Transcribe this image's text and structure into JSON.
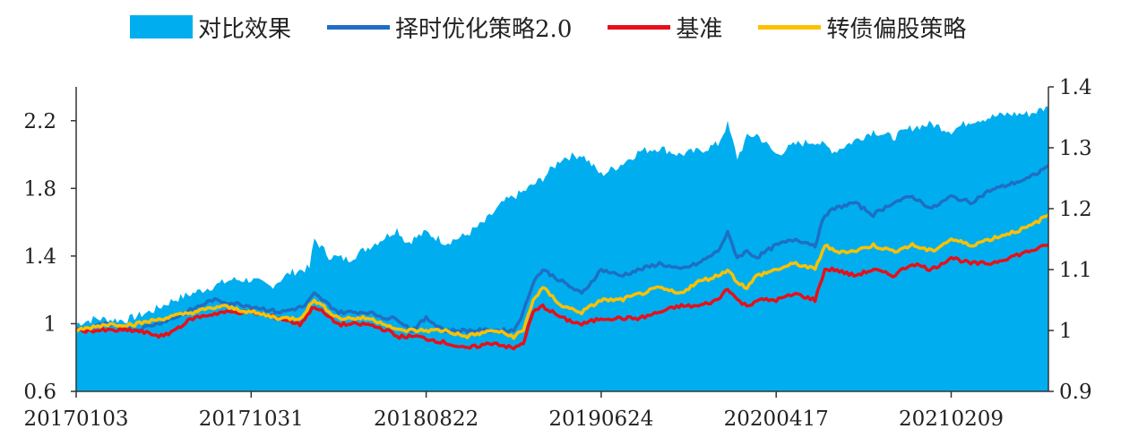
{
  "chart_data": {
    "type": "area+line",
    "legend": [
      {
        "name": "对比效果",
        "kind": "area",
        "color": "#00AEEF"
      },
      {
        "name": "择时优化策略2.0",
        "kind": "line",
        "color": "#1E6FC3"
      },
      {
        "name": "基准",
        "kind": "line",
        "color": "#E5101A"
      },
      {
        "name": "转债偏股策略",
        "kind": "line",
        "color": "#FFC000"
      }
    ],
    "left_axis": {
      "min": 0.6,
      "max": 2.4,
      "ticks": [
        "0.6",
        "1",
        "1.4",
        "1.8",
        "2.2"
      ],
      "tick_values": [
        0.6,
        1.0,
        1.4,
        1.8,
        2.2
      ]
    },
    "right_axis": {
      "min": 0.9,
      "max": 1.4,
      "ticks": [
        "0.9",
        "1",
        "1.1",
        "1.2",
        "1.3",
        "1.4"
      ],
      "tick_values": [
        0.9,
        1.0,
        1.1,
        1.2,
        1.3,
        1.4
      ]
    },
    "x_ticks": [
      "20170103",
      "20171031",
      "20180822",
      "20190624",
      "20200417",
      "20210209"
    ],
    "x_tick_positions": [
      0.0,
      0.18,
      0.36,
      0.54,
      0.72,
      0.9
    ],
    "series": [
      {
        "name": "对比效果",
        "axis": "left",
        "t": [
          0,
          0.02,
          0.05,
          0.08,
          0.1,
          0.13,
          0.16,
          0.18,
          0.2,
          0.22,
          0.24,
          0.245,
          0.26,
          0.28,
          0.3,
          0.32,
          0.33,
          0.34,
          0.36,
          0.38,
          0.4,
          0.42,
          0.44,
          0.46,
          0.48,
          0.5,
          0.52,
          0.54,
          0.56,
          0.58,
          0.6,
          0.62,
          0.64,
          0.66,
          0.67,
          0.68,
          0.69,
          0.7,
          0.72,
          0.74,
          0.76,
          0.78,
          0.8,
          0.82,
          0.84,
          0.86,
          0.88,
          0.9,
          0.92,
          0.94,
          0.96,
          0.98,
          1.0
        ],
        "v": [
          1.0,
          1.03,
          1.02,
          1.08,
          1.14,
          1.2,
          1.26,
          1.26,
          1.22,
          1.3,
          1.33,
          1.5,
          1.4,
          1.38,
          1.45,
          1.52,
          1.56,
          1.48,
          1.54,
          1.48,
          1.52,
          1.6,
          1.72,
          1.78,
          1.86,
          1.98,
          2.0,
          1.88,
          1.94,
          2.02,
          2.04,
          2.0,
          2.02,
          2.06,
          2.18,
          1.98,
          2.1,
          2.12,
          2.0,
          2.06,
          2.08,
          2.02,
          2.08,
          2.14,
          2.1,
          2.16,
          2.18,
          2.14,
          2.2,
          2.22,
          2.24,
          2.24,
          2.28
        ]
      },
      {
        "name": "择时优化策略2.0",
        "axis": "right",
        "t": [
          0,
          0.03,
          0.06,
          0.1,
          0.14,
          0.18,
          0.21,
          0.235,
          0.245,
          0.27,
          0.3,
          0.32,
          0.33,
          0.345,
          0.36,
          0.38,
          0.4,
          0.43,
          0.45,
          0.46,
          0.47,
          0.48,
          0.5,
          0.52,
          0.54,
          0.56,
          0.58,
          0.6,
          0.62,
          0.64,
          0.66,
          0.67,
          0.68,
          0.69,
          0.7,
          0.72,
          0.74,
          0.76,
          0.77,
          0.78,
          0.8,
          0.82,
          0.84,
          0.86,
          0.88,
          0.9,
          0.92,
          0.94,
          0.96,
          0.98,
          1.0
        ],
        "v": [
          1.0,
          1.01,
          1.0,
          1.02,
          1.05,
          1.04,
          1.03,
          1.04,
          1.06,
          1.03,
          1.03,
          1.02,
          1.02,
          1.0,
          1.02,
          1.0,
          1.0,
          1.0,
          1.0,
          1.03,
          1.08,
          1.1,
          1.08,
          1.06,
          1.1,
          1.09,
          1.1,
          1.11,
          1.1,
          1.11,
          1.13,
          1.16,
          1.12,
          1.13,
          1.12,
          1.14,
          1.15,
          1.14,
          1.19,
          1.2,
          1.21,
          1.19,
          1.21,
          1.22,
          1.2,
          1.22,
          1.21,
          1.23,
          1.24,
          1.25,
          1.27
        ]
      },
      {
        "name": "基准",
        "axis": "right",
        "t": [
          0,
          0.03,
          0.06,
          0.09,
          0.12,
          0.15,
          0.18,
          0.21,
          0.23,
          0.245,
          0.27,
          0.3,
          0.32,
          0.33,
          0.35,
          0.38,
          0.4,
          0.43,
          0.45,
          0.46,
          0.47,
          0.48,
          0.5,
          0.52,
          0.54,
          0.56,
          0.58,
          0.6,
          0.62,
          0.64,
          0.66,
          0.67,
          0.68,
          0.69,
          0.7,
          0.72,
          0.74,
          0.76,
          0.77,
          0.78,
          0.8,
          0.82,
          0.84,
          0.86,
          0.88,
          0.9,
          0.92,
          0.94,
          0.96,
          0.98,
          1.0
        ],
        "v": [
          1.0,
          1.0,
          1.0,
          0.99,
          1.02,
          1.03,
          1.03,
          1.02,
          1.01,
          1.04,
          1.01,
          1.01,
          1.0,
          0.99,
          0.99,
          0.98,
          0.97,
          0.98,
          0.97,
          0.98,
          1.03,
          1.04,
          1.02,
          1.01,
          1.02,
          1.02,
          1.02,
          1.03,
          1.04,
          1.04,
          1.05,
          1.07,
          1.05,
          1.04,
          1.05,
          1.05,
          1.06,
          1.05,
          1.1,
          1.1,
          1.09,
          1.1,
          1.09,
          1.11,
          1.1,
          1.12,
          1.11,
          1.11,
          1.12,
          1.13,
          1.14
        ]
      },
      {
        "name": "转债偏股策略",
        "axis": "right",
        "t": [
          0,
          0.03,
          0.06,
          0.09,
          0.12,
          0.15,
          0.18,
          0.21,
          0.23,
          0.245,
          0.27,
          0.3,
          0.32,
          0.33,
          0.35,
          0.38,
          0.4,
          0.43,
          0.45,
          0.46,
          0.47,
          0.48,
          0.5,
          0.52,
          0.54,
          0.56,
          0.58,
          0.6,
          0.62,
          0.64,
          0.66,
          0.67,
          0.68,
          0.69,
          0.7,
          0.72,
          0.74,
          0.76,
          0.77,
          0.78,
          0.8,
          0.82,
          0.84,
          0.86,
          0.88,
          0.9,
          0.92,
          0.94,
          0.96,
          0.98,
          1.0
        ],
        "v": [
          1.0,
          1.01,
          1.01,
          1.02,
          1.03,
          1.04,
          1.03,
          1.02,
          1.02,
          1.05,
          1.02,
          1.02,
          1.01,
          1.0,
          1.0,
          1.0,
          0.99,
          1.0,
          0.99,
          1.0,
          1.05,
          1.07,
          1.04,
          1.03,
          1.05,
          1.05,
          1.06,
          1.07,
          1.06,
          1.08,
          1.09,
          1.1,
          1.08,
          1.07,
          1.09,
          1.1,
          1.11,
          1.1,
          1.14,
          1.13,
          1.13,
          1.14,
          1.13,
          1.14,
          1.13,
          1.15,
          1.14,
          1.15,
          1.16,
          1.17,
          1.19
        ]
      }
    ]
  }
}
